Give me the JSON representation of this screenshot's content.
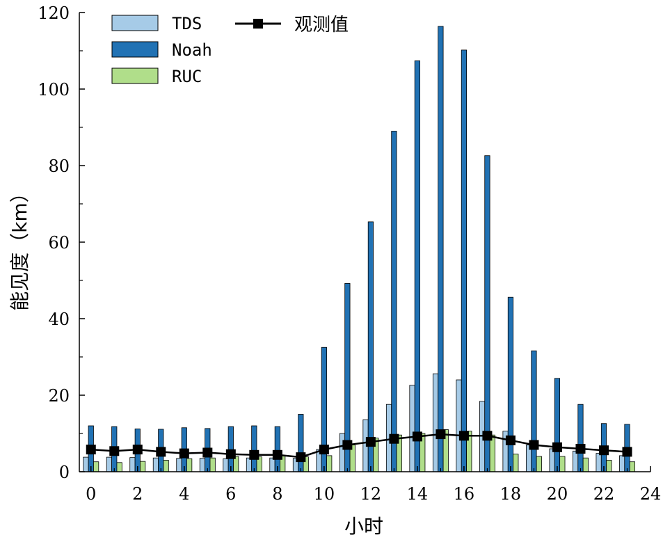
{
  "chart_data": {
    "type": "bar",
    "title": "",
    "xlabel": "小时",
    "ylabel": "能见度（km）",
    "xlim": [
      -0.5,
      24
    ],
    "ylim": [
      0,
      120
    ],
    "x_ticks": [
      "0",
      "2",
      "4",
      "6",
      "8",
      "10",
      "12",
      "14",
      "16",
      "18",
      "20",
      "22",
      "24"
    ],
    "y_ticks": [
      "0",
      "20",
      "40",
      "60",
      "80",
      "100",
      "120"
    ],
    "categories": [
      "0",
      "1",
      "2",
      "3",
      "4",
      "5",
      "6",
      "7",
      "8",
      "9",
      "10",
      "11",
      "12",
      "13",
      "14",
      "15",
      "16",
      "17",
      "18",
      "19",
      "20",
      "21",
      "22",
      "23"
    ],
    "series": [
      {
        "name": "TDS",
        "kind": "bar",
        "color": "#a6cbe7",
        "values": [
          3.8,
          3.8,
          3.7,
          3.6,
          3.5,
          3.5,
          3.4,
          3.6,
          3.6,
          3.5,
          5.8,
          10.0,
          13.6,
          17.6,
          22.6,
          25.6,
          24.0,
          18.4,
          10.6,
          7.0,
          6.0,
          5.4,
          4.8,
          4.2
        ]
      },
      {
        "name": "Noah",
        "kind": "bar",
        "color": "#2172b4",
        "values": [
          12.0,
          11.8,
          11.2,
          11.1,
          11.5,
          11.3,
          11.8,
          12.0,
          11.8,
          15.0,
          32.5,
          49.2,
          65.3,
          89.0,
          107.4,
          116.4,
          110.2,
          82.6,
          45.6,
          31.6,
          24.4,
          17.6,
          12.6,
          12.4
        ]
      },
      {
        "name": "RUC",
        "kind": "bar",
        "color": "#b0de8a",
        "values": [
          2.6,
          2.4,
          2.7,
          3.0,
          3.4,
          3.6,
          4.0,
          3.9,
          4.2,
          3.9,
          4.2,
          7.0,
          8.8,
          9.6,
          10.0,
          11.0,
          10.6,
          9.6,
          4.6,
          4.0,
          4.0,
          3.6,
          3.0,
          2.6
        ]
      },
      {
        "name": "观测值",
        "kind": "line",
        "color": "#000000",
        "values": [
          5.8,
          5.4,
          5.8,
          5.2,
          4.8,
          5.0,
          4.6,
          4.4,
          4.4,
          3.8,
          5.8,
          7.0,
          7.8,
          8.6,
          9.2,
          9.8,
          9.4,
          9.4,
          8.2,
          7.0,
          6.4,
          6.0,
          5.6,
          5.2
        ]
      }
    ],
    "legend_position": "top-left",
    "grid": false
  }
}
